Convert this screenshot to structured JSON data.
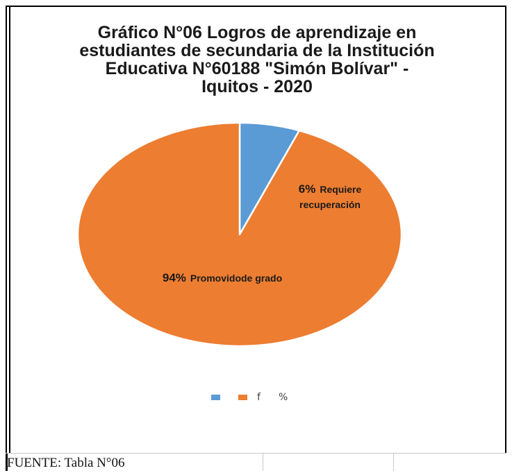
{
  "chart_data": {
    "type": "pie",
    "title": "Gráfico N°06 Logros de aprendizaje en estudiantes de secundaria de la Institución Educativa N°60188 \"Simón Bolívar\" - Iquitos - 2020",
    "title_lines": [
      "Gráfico N°06 Logros de aprendizaje en",
      "estudiantes de secundaria de la Institución",
      "Educativa N°60188 \"Simón Bolívar\" -",
      "Iquitos - 2020"
    ],
    "slices": [
      {
        "label": "Requiere recuperación",
        "label_lines": [
          "Requiere",
          "recuperación"
        ],
        "percent_label": "6%",
        "value": 6,
        "color": "#5b9bd5"
      },
      {
        "label": "Promovidode grado",
        "label_lines": [
          "Promovidode grado"
        ],
        "percent_label": "94%",
        "value": 94,
        "color": "#ed7d31"
      }
    ],
    "legend": {
      "placement": "bottom",
      "entries": [
        {
          "name": "f",
          "color": "#5b9bd5"
        },
        {
          "name": "%",
          "color": "#ed7d31"
        }
      ]
    }
  },
  "footer": {
    "source": "FUENTE: Tabla N°06"
  }
}
